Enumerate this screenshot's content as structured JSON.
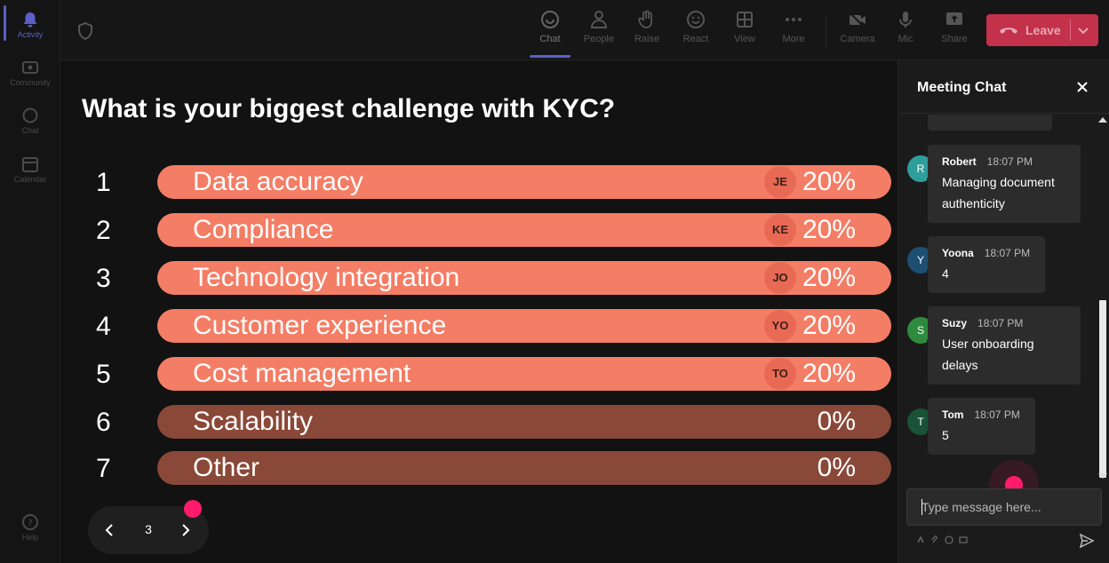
{
  "rail": {
    "items": [
      {
        "label": "Activity",
        "icon": "bell-icon"
      },
      {
        "label": "Community",
        "icon": "community-icon"
      },
      {
        "label": "Chat",
        "icon": "chat-icon"
      },
      {
        "label": "Calendar",
        "icon": "calendar-icon"
      },
      {
        "label": "Help",
        "icon": "help-icon"
      }
    ]
  },
  "toolbar": {
    "buttons": [
      {
        "label": "Chat",
        "icon": "chat-icon"
      },
      {
        "label": "People",
        "icon": "people-icon"
      },
      {
        "label": "Raise",
        "icon": "raise-hand-icon"
      },
      {
        "label": "React",
        "icon": "react-icon"
      },
      {
        "label": "View",
        "icon": "view-grid-icon"
      },
      {
        "label": "More",
        "icon": "more-icon"
      },
      {
        "label": "Camera",
        "icon": "camera-off-icon"
      },
      {
        "label": "Mic",
        "icon": "mic-icon"
      },
      {
        "label": "Share",
        "icon": "share-icon"
      }
    ],
    "leave_label": "Leave",
    "leave_color": "#c4314b"
  },
  "poll": {
    "question": "What is your biggest challenge with KYC?",
    "options": [
      {
        "num": "1",
        "label": "Data accuracy",
        "avatar": "JE",
        "percent": "20%"
      },
      {
        "num": "2",
        "label": "Compliance",
        "avatar": "KE",
        "percent": "20%"
      },
      {
        "num": "3",
        "label": "Technology integration",
        "avatar": "JO",
        "percent": "20%"
      },
      {
        "num": "4",
        "label": "Customer experience",
        "avatar": "YO",
        "percent": "20%"
      },
      {
        "num": "5",
        "label": "Cost management",
        "avatar": "TO",
        "percent": "20%"
      },
      {
        "num": "6",
        "label": "Scalability",
        "avatar": "",
        "percent": "0%"
      },
      {
        "num": "7",
        "label": "Other",
        "avatar": "",
        "percent": "0%"
      }
    ],
    "bar_color": "#f47d65",
    "bar_zero_color": "#8a4838",
    "page": "3"
  },
  "chat": {
    "title": "Meeting Chat",
    "messages": [
      {
        "initial": "R",
        "name": "Robert",
        "time": "18:07 PM",
        "text_lines": [
          "Managing document",
          "authenticity"
        ],
        "color": "#2e9e9a"
      },
      {
        "initial": "Y",
        "name": "Yoona",
        "time": "18:07 PM",
        "text_lines": [
          "4"
        ],
        "color": "#1d4f73"
      },
      {
        "initial": "S",
        "name": "Suzy",
        "time": "18:07 PM",
        "text_lines": [
          "User onboarding",
          "delays"
        ],
        "color": "#2e8b3e"
      },
      {
        "initial": "T",
        "name": "Tom",
        "time": "18:07 PM",
        "text_lines": [
          "5"
        ],
        "color": "#1a5236"
      }
    ],
    "placeholder": "Type message here..."
  },
  "accent_color": "#5b5fc7",
  "highlight_color": "#ff1a6b"
}
